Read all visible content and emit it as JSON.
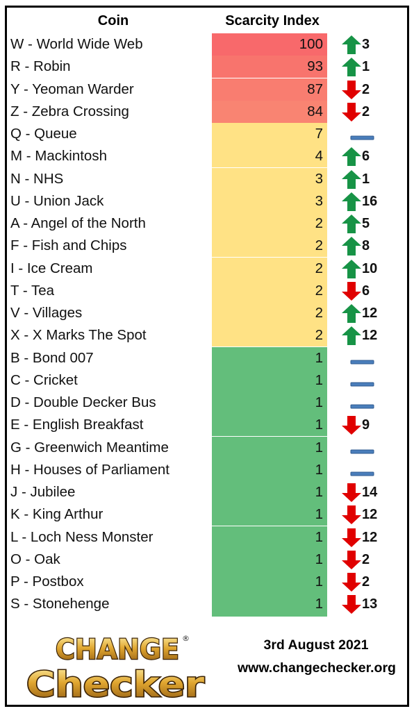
{
  "header": {
    "coin_label": "Coin",
    "index_label": "Scarcity Index"
  },
  "colors": {
    "red_tier": "#f8696b",
    "yellow_tier": "#ffe285",
    "green_tier": "#63be7b",
    "arrow_up": "#179346",
    "arrow_down": "#e00000",
    "no_change": "#4a7ebb"
  },
  "rows": [
    {
      "name": "W - World Wide Web",
      "value": "100",
      "tier": "red",
      "bg": "#f8696b",
      "trend": "up",
      "change": "3"
    },
    {
      "name": "R - Robin",
      "value": "93",
      "tier": "red",
      "bg": "#f8746d",
      "trend": "up",
      "change": "1"
    },
    {
      "name": "Y - Yeoman Warder",
      "value": "87",
      "tier": "red",
      "bg": "#f97d70",
      "trend": "down",
      "change": "2"
    },
    {
      "name": "Z - Zebra Crossing",
      "value": "84",
      "tier": "red",
      "bg": "#f98472",
      "trend": "down",
      "change": "2"
    },
    {
      "name": "Q - Queue",
      "value": "7",
      "tier": "yellow",
      "bg": "#ffe285",
      "trend": "none",
      "change": ""
    },
    {
      "name": "M - Mackintosh",
      "value": "4",
      "tier": "yellow",
      "bg": "#ffe285",
      "trend": "up",
      "change": "6"
    },
    {
      "name": "N - NHS",
      "value": "3",
      "tier": "yellow",
      "bg": "#ffe285",
      "trend": "up",
      "change": "1"
    },
    {
      "name": "U - Union Jack",
      "value": "3",
      "tier": "yellow",
      "bg": "#ffe285",
      "trend": "up",
      "change": "16"
    },
    {
      "name": "A - Angel of the North",
      "value": "2",
      "tier": "yellow",
      "bg": "#ffe285",
      "trend": "up",
      "change": "5"
    },
    {
      "name": "F - Fish and Chips",
      "value": "2",
      "tier": "yellow",
      "bg": "#ffe285",
      "trend": "up",
      "change": "8"
    },
    {
      "name": "I - Ice Cream",
      "value": "2",
      "tier": "yellow",
      "bg": "#ffe285",
      "trend": "up",
      "change": "10"
    },
    {
      "name": "T - Tea",
      "value": "2",
      "tier": "yellow",
      "bg": "#ffe285",
      "trend": "down",
      "change": "6"
    },
    {
      "name": "V - Villages",
      "value": "2",
      "tier": "yellow",
      "bg": "#ffe285",
      "trend": "up",
      "change": "12"
    },
    {
      "name": "X - X Marks The Spot",
      "value": "2",
      "tier": "yellow",
      "bg": "#ffe285",
      "trend": "up",
      "change": "12"
    },
    {
      "name": "B - Bond 007",
      "value": "1",
      "tier": "green",
      "bg": "#63be7b",
      "trend": "none",
      "change": ""
    },
    {
      "name": "C - Cricket",
      "value": "1",
      "tier": "green",
      "bg": "#63be7b",
      "trend": "none",
      "change": ""
    },
    {
      "name": "D - Double Decker Bus",
      "value": "1",
      "tier": "green",
      "bg": "#63be7b",
      "trend": "none",
      "change": ""
    },
    {
      "name": "E - English Breakfast",
      "value": "1",
      "tier": "green",
      "bg": "#63be7b",
      "trend": "down",
      "change": "9"
    },
    {
      "name": "G - Greenwich Meantime",
      "value": "1",
      "tier": "green",
      "bg": "#63be7b",
      "trend": "none",
      "change": ""
    },
    {
      "name": "H - Houses of Parliament",
      "value": "1",
      "tier": "green",
      "bg": "#63be7b",
      "trend": "none",
      "change": ""
    },
    {
      "name": "J - Jubilee",
      "value": "1",
      "tier": "green",
      "bg": "#63be7b",
      "trend": "down",
      "change": "14"
    },
    {
      "name": "K - King Arthur",
      "value": "1",
      "tier": "green",
      "bg": "#63be7b",
      "trend": "down",
      "change": "12"
    },
    {
      "name": "L - Loch Ness Monster",
      "value": "1",
      "tier": "green",
      "bg": "#63be7b",
      "trend": "down",
      "change": "12"
    },
    {
      "name": "O - Oak",
      "value": "1",
      "tier": "green",
      "bg": "#63be7b",
      "trend": "down",
      "change": "2"
    },
    {
      "name": "P - Postbox",
      "value": "1",
      "tier": "green",
      "bg": "#63be7b",
      "trend": "down",
      "change": "2"
    },
    {
      "name": "S - Stonehenge",
      "value": "1",
      "tier": "green",
      "bg": "#63be7b",
      "trend": "down",
      "change": "13"
    }
  ],
  "footer": {
    "date": "3rd August 2021",
    "url": "www.changechecker.org",
    "logo_line1": "CHANGE",
    "logo_line2": "Checker",
    "logo_mark": "®"
  }
}
